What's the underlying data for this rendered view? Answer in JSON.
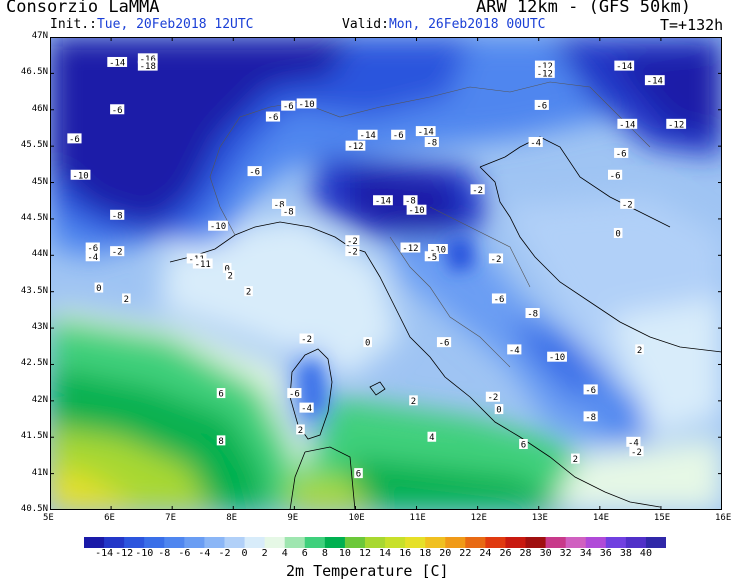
{
  "header": {
    "title": "Consorzio LaMMA",
    "model": "ARW 12km - (GFS 50km)",
    "init_label": "Init.:",
    "init_value": "Tue, 20Feb2018 12UTC",
    "valid_label": "Valid:",
    "valid_value": "Mon, 26Feb2018 00UTC",
    "forecast_hour": "T=+132h"
  },
  "map": {
    "lat_labels": [
      "47N",
      "46.5N",
      "46N",
      "45.5N",
      "45N",
      "44.5N",
      "44N",
      "43.5N",
      "43N",
      "42.5N",
      "42N",
      "41.5N",
      "41N",
      "40.5N"
    ],
    "lon_labels": [
      "5E",
      "6E",
      "7E",
      "8E",
      "9E",
      "10E",
      "11E",
      "12E",
      "13E",
      "14E",
      "15E",
      "16E"
    ],
    "lat_range": [
      40.5,
      47
    ],
    "lon_range": [
      5,
      16
    ]
  },
  "colorbar": {
    "title": "2m Temperature [C]",
    "levels": [
      "-14",
      "-12",
      "-10",
      "-8",
      "-6",
      "-4",
      "-2",
      "0",
      "2",
      "4",
      "6",
      "8",
      "10",
      "12",
      "14",
      "16",
      "18",
      "20",
      "22",
      "24",
      "26",
      "28",
      "30",
      "32",
      "34",
      "36",
      "38",
      "40"
    ],
    "colors": [
      "#1a1aa8",
      "#2337c8",
      "#2c55dd",
      "#3a6fe8",
      "#4f86ef",
      "#6a9df3",
      "#8bb6f6",
      "#b1d0f8",
      "#d8ecfa",
      "#e6f8e6",
      "#9fe6b0",
      "#3fd07c",
      "#00b050",
      "#6cc83a",
      "#a8d830",
      "#c8e02a",
      "#e6e028",
      "#f0c020",
      "#f09a18",
      "#e86a14",
      "#e03a10",
      "#c81a10",
      "#a01010",
      "#c83a8a",
      "#d060c0",
      "#b04ad8",
      "#7040e0",
      "#5030c8",
      "#3028a8"
    ]
  },
  "temperature_labels": [
    {
      "v": "-14",
      "lon": 6.1,
      "lat": 46.65
    },
    {
      "v": "-16",
      "lon": 6.6,
      "lat": 46.7
    },
    {
      "v": "-18",
      "lon": 6.6,
      "lat": 46.6
    },
    {
      "v": "-6",
      "lon": 6.1,
      "lat": 46.0
    },
    {
      "v": "-6",
      "lon": 5.4,
      "lat": 45.6
    },
    {
      "v": "-10",
      "lon": 5.5,
      "lat": 45.1
    },
    {
      "v": "-6",
      "lon": 5.7,
      "lat": 44.1
    },
    {
      "v": "-4",
      "lon": 5.7,
      "lat": 43.98
    },
    {
      "v": "-2",
      "lon": 6.1,
      "lat": 44.05
    },
    {
      "v": "-8",
      "lon": 6.1,
      "lat": 44.55
    },
    {
      "v": "0",
      "lon": 5.8,
      "lat": 43.55
    },
    {
      "v": "2",
      "lon": 6.25,
      "lat": 43.4
    },
    {
      "v": "-10",
      "lon": 7.75,
      "lat": 44.4
    },
    {
      "v": "-11",
      "lon": 7.4,
      "lat": 43.95
    },
    {
      "v": "-11",
      "lon": 7.5,
      "lat": 43.88
    },
    {
      "v": "0",
      "lon": 7.9,
      "lat": 43.82
    },
    {
      "v": "2",
      "lon": 7.95,
      "lat": 43.72
    },
    {
      "v": "2",
      "lon": 8.25,
      "lat": 43.5
    },
    {
      "v": "-6",
      "lon": 8.35,
      "lat": 45.15
    },
    {
      "v": "-8",
      "lon": 8.75,
      "lat": 44.7
    },
    {
      "v": "-8",
      "lon": 8.9,
      "lat": 44.6
    },
    {
      "v": "-6",
      "lon": 8.9,
      "lat": 46.05
    },
    {
      "v": "-6",
      "lon": 8.65,
      "lat": 45.9
    },
    {
      "v": "-10",
      "lon": 9.2,
      "lat": 46.08
    },
    {
      "v": "-14",
      "lon": 10.2,
      "lat": 45.65
    },
    {
      "v": "-12",
      "lon": 10.0,
      "lat": 45.5
    },
    {
      "v": "-6",
      "lon": 10.7,
      "lat": 45.65
    },
    {
      "v": "-14",
      "lon": 11.15,
      "lat": 45.7
    },
    {
      "v": "-8",
      "lon": 11.25,
      "lat": 45.55
    },
    {
      "v": "-14",
      "lon": 10.45,
      "lat": 44.75
    },
    {
      "v": "-8",
      "lon": 10.9,
      "lat": 44.75
    },
    {
      "v": "-10",
      "lon": 11.0,
      "lat": 44.62
    },
    {
      "v": "-2",
      "lon": 9.95,
      "lat": 44.2
    },
    {
      "v": "-2",
      "lon": 9.95,
      "lat": 44.05
    },
    {
      "v": "-12",
      "lon": 10.9,
      "lat": 44.1
    },
    {
      "v": "-10",
      "lon": 11.35,
      "lat": 44.08
    },
    {
      "v": "-5",
      "lon": 11.25,
      "lat": 43.98
    },
    {
      "v": "-12",
      "lon": 13.1,
      "lat": 46.6
    },
    {
      "v": "-12",
      "lon": 13.1,
      "lat": 46.5
    },
    {
      "v": "-6",
      "lon": 13.05,
      "lat": 46.06
    },
    {
      "v": "-4",
      "lon": 12.95,
      "lat": 45.55
    },
    {
      "v": "-14",
      "lon": 14.4,
      "lat": 46.6
    },
    {
      "v": "-14",
      "lon": 14.9,
      "lat": 46.4
    },
    {
      "v": "-14",
      "lon": 14.45,
      "lat": 45.8
    },
    {
      "v": "-12",
      "lon": 15.25,
      "lat": 45.8
    },
    {
      "v": "-6",
      "lon": 14.35,
      "lat": 45.4
    },
    {
      "v": "-6",
      "lon": 14.25,
      "lat": 45.1
    },
    {
      "v": "-2",
      "lon": 12.0,
      "lat": 44.9
    },
    {
      "v": "-2",
      "lon": 14.45,
      "lat": 44.7
    },
    {
      "v": "0",
      "lon": 14.3,
      "lat": 44.3
    },
    {
      "v": "-2",
      "lon": 12.3,
      "lat": 43.95
    },
    {
      "v": "-6",
      "lon": 12.35,
      "lat": 43.4
    },
    {
      "v": "-8",
      "lon": 12.9,
      "lat": 43.2
    },
    {
      "v": "-6",
      "lon": 11.45,
      "lat": 42.8
    },
    {
      "v": "-4",
      "lon": 12.6,
      "lat": 42.7
    },
    {
      "v": "-10",
      "lon": 13.3,
      "lat": 42.6
    },
    {
      "v": "2",
      "lon": 14.65,
      "lat": 42.7
    },
    {
      "v": "-6",
      "lon": 13.85,
      "lat": 42.15
    },
    {
      "v": "-8",
      "lon": 13.85,
      "lat": 41.78
    },
    {
      "v": "-2",
      "lon": 12.25,
      "lat": 42.05
    },
    {
      "v": "0",
      "lon": 12.35,
      "lat": 41.88
    },
    {
      "v": "-4",
      "lon": 14.55,
      "lat": 41.43
    },
    {
      "v": "-2",
      "lon": 14.6,
      "lat": 41.3
    },
    {
      "v": "-2",
      "lon": 9.2,
      "lat": 42.85
    },
    {
      "v": "-6",
      "lon": 9.0,
      "lat": 42.1
    },
    {
      "v": "-4",
      "lon": 9.2,
      "lat": 41.9
    },
    {
      "v": "2",
      "lon": 9.1,
      "lat": 41.6
    },
    {
      "v": "0",
      "lon": 10.2,
      "lat": 42.8
    },
    {
      "v": "2",
      "lon": 10.95,
      "lat": 42.0
    },
    {
      "v": "4",
      "lon": 11.25,
      "lat": 41.5
    },
    {
      "v": "6",
      "lon": 12.75,
      "lat": 41.4
    },
    {
      "v": "2",
      "lon": 13.6,
      "lat": 41.2
    },
    {
      "v": "6",
      "lon": 7.8,
      "lat": 42.1
    },
    {
      "v": "8",
      "lon": 7.8,
      "lat": 41.45
    },
    {
      "v": "6",
      "lon": 10.05,
      "lat": 41.0
    }
  ]
}
